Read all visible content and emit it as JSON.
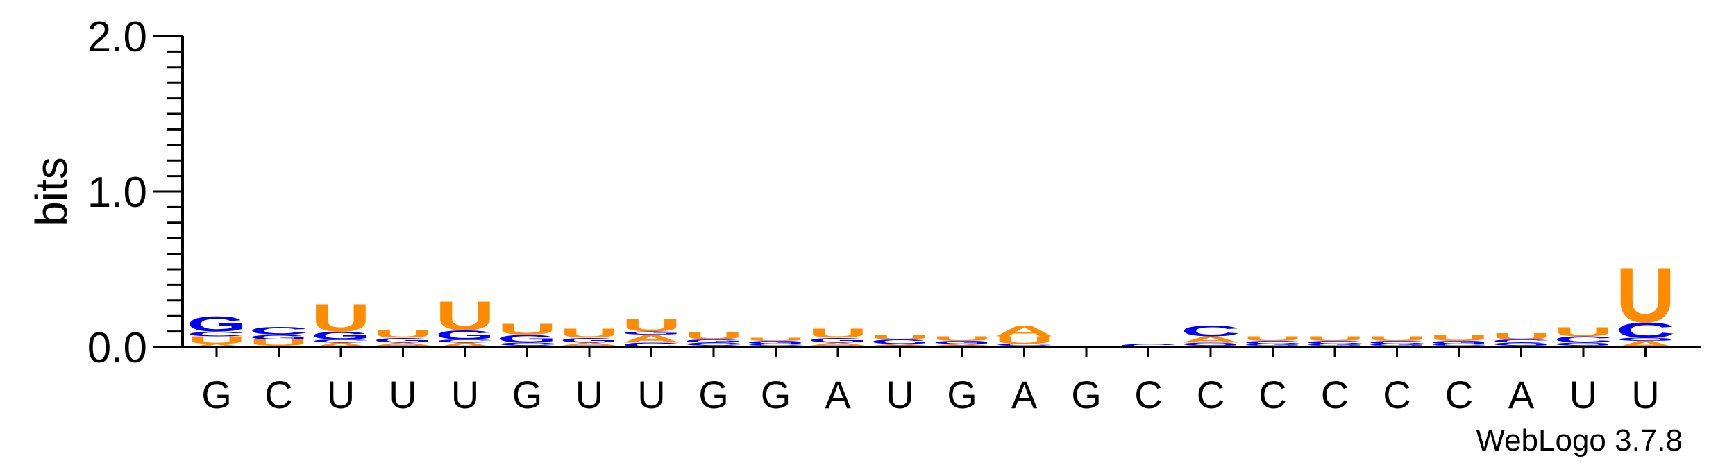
{
  "chart_data": {
    "type": "sequence-logo",
    "ylabel": "bits",
    "ylim": [
      0.0,
      2.0
    ],
    "yticks": [
      "0.0",
      "1.0",
      "2.0"
    ],
    "credit": "WebLogo 3.7.8",
    "colors": {
      "A": "#ff8c00",
      "U": "#ff8c00",
      "G": "#0000ff",
      "C": "#0000ff"
    },
    "positions": [
      {
        "label": "G",
        "stack": [
          [
            "A",
            0.02
          ],
          [
            "U",
            0.05
          ],
          [
            "C",
            0.03
          ],
          [
            "G",
            0.1
          ]
        ]
      },
      {
        "label": "C",
        "stack": [
          [
            "A",
            0.01
          ],
          [
            "U",
            0.04
          ],
          [
            "G",
            0.03
          ],
          [
            "C",
            0.05
          ]
        ]
      },
      {
        "label": "U",
        "stack": [
          [
            "A",
            0.03
          ],
          [
            "C",
            0.02
          ],
          [
            "G",
            0.05
          ],
          [
            "U",
            0.18
          ]
        ]
      },
      {
        "label": "U",
        "stack": [
          [
            "C",
            0.01
          ],
          [
            "A",
            0.02
          ],
          [
            "G",
            0.03
          ],
          [
            "U",
            0.05
          ]
        ]
      },
      {
        "label": "U",
        "stack": [
          [
            "A",
            0.03
          ],
          [
            "C",
            0.02
          ],
          [
            "G",
            0.06
          ],
          [
            "U",
            0.19
          ]
        ]
      },
      {
        "label": "G",
        "stack": [
          [
            "A",
            0.01
          ],
          [
            "C",
            0.02
          ],
          [
            "G",
            0.05
          ],
          [
            "U",
            0.07
          ]
        ]
      },
      {
        "label": "U",
        "stack": [
          [
            "C",
            0.01
          ],
          [
            "A",
            0.02
          ],
          [
            "G",
            0.03
          ],
          [
            "U",
            0.06
          ]
        ]
      },
      {
        "label": "U",
        "stack": [
          [
            "C",
            0.03
          ],
          [
            "A",
            0.05
          ],
          [
            "G",
            0.02
          ],
          [
            "U",
            0.08
          ]
        ]
      },
      {
        "label": "G",
        "stack": [
          [
            "A",
            0.01
          ],
          [
            "C",
            0.02
          ],
          [
            "G",
            0.02
          ],
          [
            "U",
            0.05
          ]
        ]
      },
      {
        "label": "G",
        "stack": [
          [
            "A",
            0.01
          ],
          [
            "C",
            0.01
          ],
          [
            "G",
            0.02
          ],
          [
            "U",
            0.02
          ]
        ]
      },
      {
        "label": "A",
        "stack": [
          [
            "C",
            0.01
          ],
          [
            "A",
            0.02
          ],
          [
            "G",
            0.03
          ],
          [
            "U",
            0.06
          ]
        ]
      },
      {
        "label": "U",
        "stack": [
          [
            "C",
            0.01
          ],
          [
            "A",
            0.01
          ],
          [
            "G",
            0.03
          ],
          [
            "U",
            0.03
          ]
        ]
      },
      {
        "label": "G",
        "stack": [
          [
            "C",
            0.01
          ],
          [
            "A",
            0.01
          ],
          [
            "G",
            0.02
          ],
          [
            "U",
            0.03
          ]
        ]
      },
      {
        "label": "A",
        "stack": [
          [
            "G",
            0.01
          ],
          [
            "C",
            0.01
          ],
          [
            "U",
            0.05
          ],
          [
            "A",
            0.07
          ]
        ]
      },
      {
        "label": "G",
        "stack": [
          [
            "A",
            0.0
          ],
          [
            "U",
            0.0
          ],
          [
            "C",
            0.0
          ],
          [
            "G",
            0.0
          ]
        ]
      },
      {
        "label": "C",
        "stack": [
          [
            "A",
            0.0
          ],
          [
            "U",
            0.0
          ],
          [
            "G",
            0.0
          ],
          [
            "C",
            0.02
          ]
        ]
      },
      {
        "label": "C",
        "stack": [
          [
            "U",
            0.01
          ],
          [
            "G",
            0.02
          ],
          [
            "A",
            0.04
          ],
          [
            "C",
            0.07
          ]
        ]
      },
      {
        "label": "C",
        "stack": [
          [
            "A",
            0.01
          ],
          [
            "G",
            0.01
          ],
          [
            "C",
            0.02
          ],
          [
            "U",
            0.03
          ]
        ]
      },
      {
        "label": "C",
        "stack": [
          [
            "A",
            0.01
          ],
          [
            "G",
            0.01
          ],
          [
            "C",
            0.02
          ],
          [
            "U",
            0.03
          ]
        ]
      },
      {
        "label": "C",
        "stack": [
          [
            "A",
            0.01
          ],
          [
            "G",
            0.01
          ],
          [
            "C",
            0.02
          ],
          [
            "U",
            0.03
          ]
        ]
      },
      {
        "label": "C",
        "stack": [
          [
            "A",
            0.01
          ],
          [
            "C",
            0.01
          ],
          [
            "G",
            0.02
          ],
          [
            "U",
            0.04
          ]
        ]
      },
      {
        "label": "A",
        "stack": [
          [
            "A",
            0.01
          ],
          [
            "G",
            0.02
          ],
          [
            "C",
            0.02
          ],
          [
            "U",
            0.04
          ]
        ]
      },
      {
        "label": "U",
        "stack": [
          [
            "A",
            0.01
          ],
          [
            "G",
            0.02
          ],
          [
            "C",
            0.04
          ],
          [
            "U",
            0.06
          ]
        ]
      },
      {
        "label": "U",
        "stack": [
          [
            "A",
            0.04
          ],
          [
            "G",
            0.02
          ],
          [
            "C",
            0.1
          ],
          [
            "U",
            0.36
          ]
        ]
      }
    ]
  }
}
